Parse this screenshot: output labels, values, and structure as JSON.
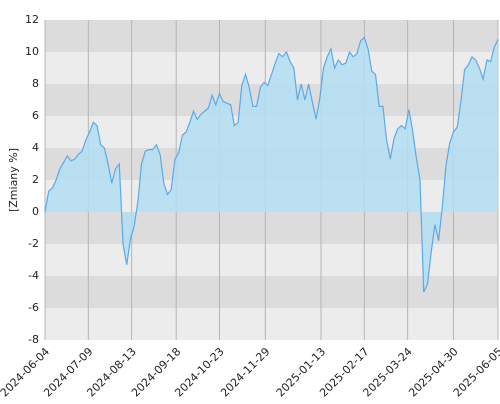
{
  "chart_data": {
    "type": "area",
    "y_label": "[Zmiany %]",
    "x": [
      "2024-06-04",
      "2024-06-07",
      "2024-06-10",
      "2024-06-13",
      "2024-06-16",
      "2024-06-19",
      "2024-06-22",
      "2024-06-25",
      "2024-06-28",
      "2024-07-01",
      "2024-07-04",
      "2024-07-07",
      "2024-07-10",
      "2024-07-13",
      "2024-07-16",
      "2024-07-19",
      "2024-07-22",
      "2024-07-25",
      "2024-07-28",
      "2024-07-31",
      "2024-08-03",
      "2024-08-06",
      "2024-08-09",
      "2024-08-12",
      "2024-08-15",
      "2024-08-18",
      "2024-08-21",
      "2024-08-24",
      "2024-08-27",
      "2024-08-30",
      "2024-09-02",
      "2024-09-05",
      "2024-09-08",
      "2024-09-11",
      "2024-09-14",
      "2024-09-17",
      "2024-09-20",
      "2024-09-23",
      "2024-09-26",
      "2024-09-29",
      "2024-10-02",
      "2024-10-05",
      "2024-10-08",
      "2024-10-11",
      "2024-10-14",
      "2024-10-17",
      "2024-10-20",
      "2024-10-23",
      "2024-10-26",
      "2024-10-29",
      "2024-11-01",
      "2024-11-04",
      "2024-11-07",
      "2024-11-10",
      "2024-11-13",
      "2024-11-16",
      "2024-11-19",
      "2024-11-22",
      "2024-11-25",
      "2024-11-28",
      "2024-12-01",
      "2024-12-04",
      "2024-12-07",
      "2024-12-10",
      "2024-12-13",
      "2024-12-16",
      "2024-12-19",
      "2024-12-22",
      "2024-12-25",
      "2024-12-28",
      "2024-12-31",
      "2025-01-03",
      "2025-01-06",
      "2025-01-09",
      "2025-01-12",
      "2025-01-15",
      "2025-01-18",
      "2025-01-21",
      "2025-01-24",
      "2025-01-27",
      "2025-01-30",
      "2025-02-02",
      "2025-02-05",
      "2025-02-08",
      "2025-02-11",
      "2025-02-14",
      "2025-02-17",
      "2025-02-20",
      "2025-02-23",
      "2025-02-26",
      "2025-03-01",
      "2025-03-04",
      "2025-03-07",
      "2025-03-10",
      "2025-03-13",
      "2025-03-16",
      "2025-03-19",
      "2025-03-22",
      "2025-03-25",
      "2025-03-28",
      "2025-03-31",
      "2025-04-03",
      "2025-04-06",
      "2025-04-09",
      "2025-04-12",
      "2025-04-15",
      "2025-04-18",
      "2025-04-21",
      "2025-04-24",
      "2025-04-27",
      "2025-04-30",
      "2025-05-03",
      "2025-05-06",
      "2025-05-09",
      "2025-05-12",
      "2025-05-15",
      "2025-05-18",
      "2025-05-21",
      "2025-05-24",
      "2025-05-27",
      "2025-05-30",
      "2025-06-02",
      "2025-06-05"
    ],
    "values": [
      0,
      1.3,
      1.5,
      2.0,
      2.7,
      3.1,
      3.5,
      3.2,
      3.3,
      3.6,
      3.8,
      4.5,
      5.0,
      5.6,
      5.4,
      4.2,
      4.0,
      3.0,
      1.8,
      2.7,
      3.0,
      -2.0,
      -3.3,
      -1.7,
      -0.9,
      0.6,
      3.0,
      3.8,
      3.9,
      3.9,
      4.2,
      3.6,
      1.8,
      1.1,
      1.4,
      3.3,
      3.7,
      4.8,
      5.0,
      5.6,
      6.3,
      5.8,
      6.1,
      6.3,
      6.5,
      7.3,
      6.7,
      7.4,
      6.9,
      6.8,
      6.7,
      5.4,
      5.6,
      7.9,
      8.6,
      7.8,
      6.6,
      6.6,
      7.8,
      8.1,
      7.9,
      8.6,
      9.3,
      9.9,
      9.7,
      10.0,
      9.4,
      9.0,
      7.0,
      8.0,
      7.0,
      8.0,
      6.9,
      5.8,
      7.1,
      9.0,
      9.7,
      10.2,
      9.0,
      9.5,
      9.2,
      9.3,
      10.0,
      9.7,
      9.9,
      10.7,
      10.9,
      10.2,
      8.8,
      8.6,
      6.6,
      6.6,
      4.5,
      3.3,
      4.6,
      5.2,
      5.4,
      5.2,
      6.4,
      5.1,
      3.4,
      2.0,
      -5.0,
      -4.5,
      -2.5,
      -0.8,
      -1.8,
      0.3,
      2.9,
      4.3,
      5.0,
      5.3,
      6.9,
      8.9,
      9.2,
      9.7,
      9.5,
      9.0,
      8.3,
      9.5,
      9.4,
      10.3,
      10.8
    ],
    "line_color": "#5aaae8",
    "fill_color": "#b3def2",
    "xlim": [
      "2024-06-04",
      "2025-06-05"
    ],
    "xticks": [
      "2024-06-04",
      "2024-07-09",
      "2024-08-13",
      "2024-09-18",
      "2024-10-23",
      "2024-11-29",
      "2025-01-13",
      "2025-02-17",
      "2025-03-24",
      "2025-04-30",
      "2025-06-05"
    ],
    "ylim": [
      -8,
      12
    ],
    "yticks": [
      -8,
      -6,
      -4,
      -2,
      0,
      2,
      4,
      6,
      8,
      10,
      12
    ],
    "grid": true
  }
}
